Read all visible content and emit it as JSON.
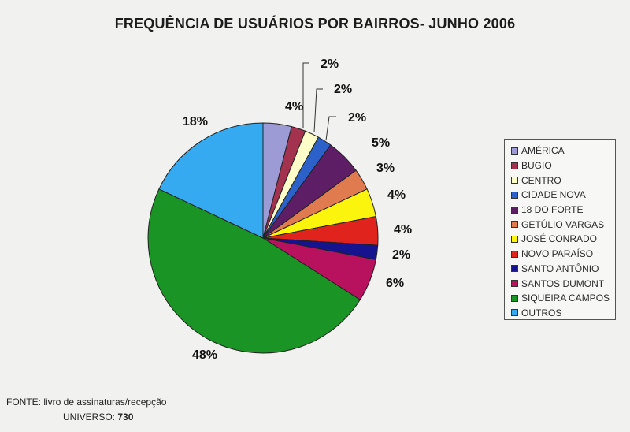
{
  "chart_data": {
    "type": "pie",
    "title": "FREQUÊNCIA DE USUÁRIOS POR BAIRROS- JUNHO 2006",
    "categories": [
      "AMÉRICA",
      "BUGIO",
      "CENTRO",
      "CIDADE NOVA",
      "18 DO FORTE",
      "GETÚLIO VARGAS",
      "JOSÉ CONRADO",
      "NOVO PARAÍSO",
      "SANTO ANTÔNIO",
      "SANTOS DUMONT",
      "SIQUEIRA CAMPOS",
      "OUTROS"
    ],
    "values": [
      4,
      2,
      2,
      2,
      5,
      3,
      4,
      4,
      2,
      6,
      48,
      18
    ],
    "labels": [
      "4%",
      "2%",
      "2%",
      "2%",
      "5%",
      "3%",
      "4%",
      "4%",
      "2%",
      "6%",
      "48%",
      "18%"
    ],
    "colors": [
      "#9c9bd6",
      "#a3324f",
      "#fdfdc9",
      "#2b61c8",
      "#5e1e66",
      "#e07a4f",
      "#fbf40c",
      "#e0231d",
      "#15148e",
      "#b8115e",
      "#1a9425",
      "#35aaf0"
    ],
    "legend_position": "right",
    "start_angle_deg": 0,
    "direction": "clockwise"
  },
  "footer": {
    "source": "FONTE: livro de assinaturas/recepção",
    "universe_label": "UNIVERSO:",
    "universe_value": "730"
  }
}
